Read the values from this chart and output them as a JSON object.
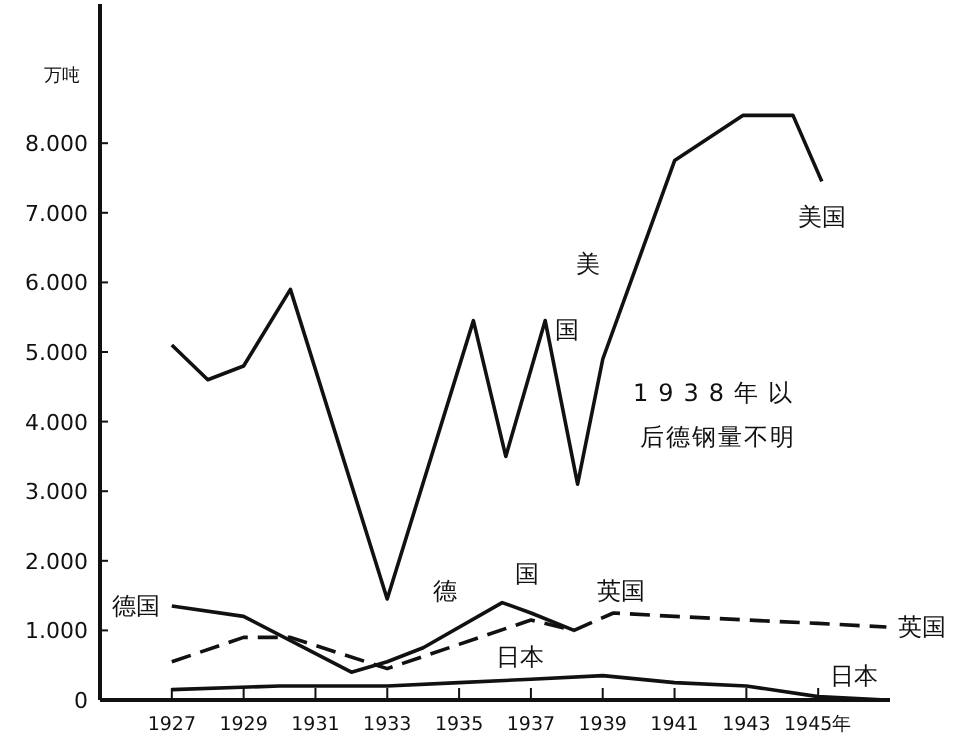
{
  "chart_data": {
    "type": "line",
    "ylabel": "万吨",
    "xlim": [
      1925,
      1947
    ],
    "ylim": [
      0,
      10000
    ],
    "xticks": [
      1927,
      1929,
      1931,
      1933,
      1935,
      1937,
      1939,
      1941,
      1943,
      {
        "value": 1945,
        "label": "1945年"
      }
    ],
    "yticks": [
      0,
      {
        "value": 1000,
        "label": "1.000"
      },
      {
        "value": 2000,
        "label": "2.000"
      },
      {
        "value": 3000,
        "label": "3.000"
      },
      {
        "value": 4000,
        "label": "4.000"
      },
      {
        "value": 5000,
        "label": "5.000"
      },
      {
        "value": 6000,
        "label": "6.000"
      },
      {
        "value": 7000,
        "label": "7.000"
      },
      {
        "value": 8000,
        "label": "8.000"
      }
    ],
    "grid": false,
    "series": [
      {
        "name": "美国",
        "color": "#111111",
        "line_style": "solid",
        "x": [
          1927,
          1928,
          1929,
          1930.3,
          1933,
          1935.4,
          1936.3,
          1937.4,
          1938.3,
          1939,
          1941,
          1942.9,
          1944.3,
          1945.1
        ],
        "values": [
          5100,
          4600,
          4800,
          5900,
          1450,
          5450,
          3500,
          5450,
          3100,
          4900,
          7750,
          8400,
          8400,
          7450
        ]
      },
      {
        "name": "德国",
        "color": "#111111",
        "line_style": "solid",
        "x": [
          1927,
          1929,
          1932,
          1933,
          1934,
          1936.2,
          1937,
          1938.2
        ],
        "values": [
          1350,
          1200,
          400,
          550,
          750,
          1400,
          1250,
          1000
        ]
      },
      {
        "name": "英国",
        "color": "#111111",
        "line_style": "dashed",
        "x": [
          1927,
          1929,
          1930.3,
          1933,
          1935,
          1937,
          1938.2,
          1939.3,
          1941,
          1943,
          1945,
          1946.9
        ],
        "values": [
          550,
          900,
          900,
          450,
          800,
          1150,
          1000,
          1250,
          1200,
          1150,
          1100,
          1050
        ]
      },
      {
        "name": "日本",
        "color": "#111111",
        "line_style": "solid",
        "x": [
          1927,
          1930,
          1933,
          1935,
          1937,
          1939,
          1941,
          1943,
          1945,
          1946.9
        ],
        "values": [
          150,
          200,
          200,
          250,
          300,
          350,
          250,
          200,
          50,
          0
        ]
      }
    ],
    "annotations": [
      "美",
      "国",
      "德",
      "国",
      "英国",
      "日本",
      "1938年以后德钢量不明"
    ]
  }
}
